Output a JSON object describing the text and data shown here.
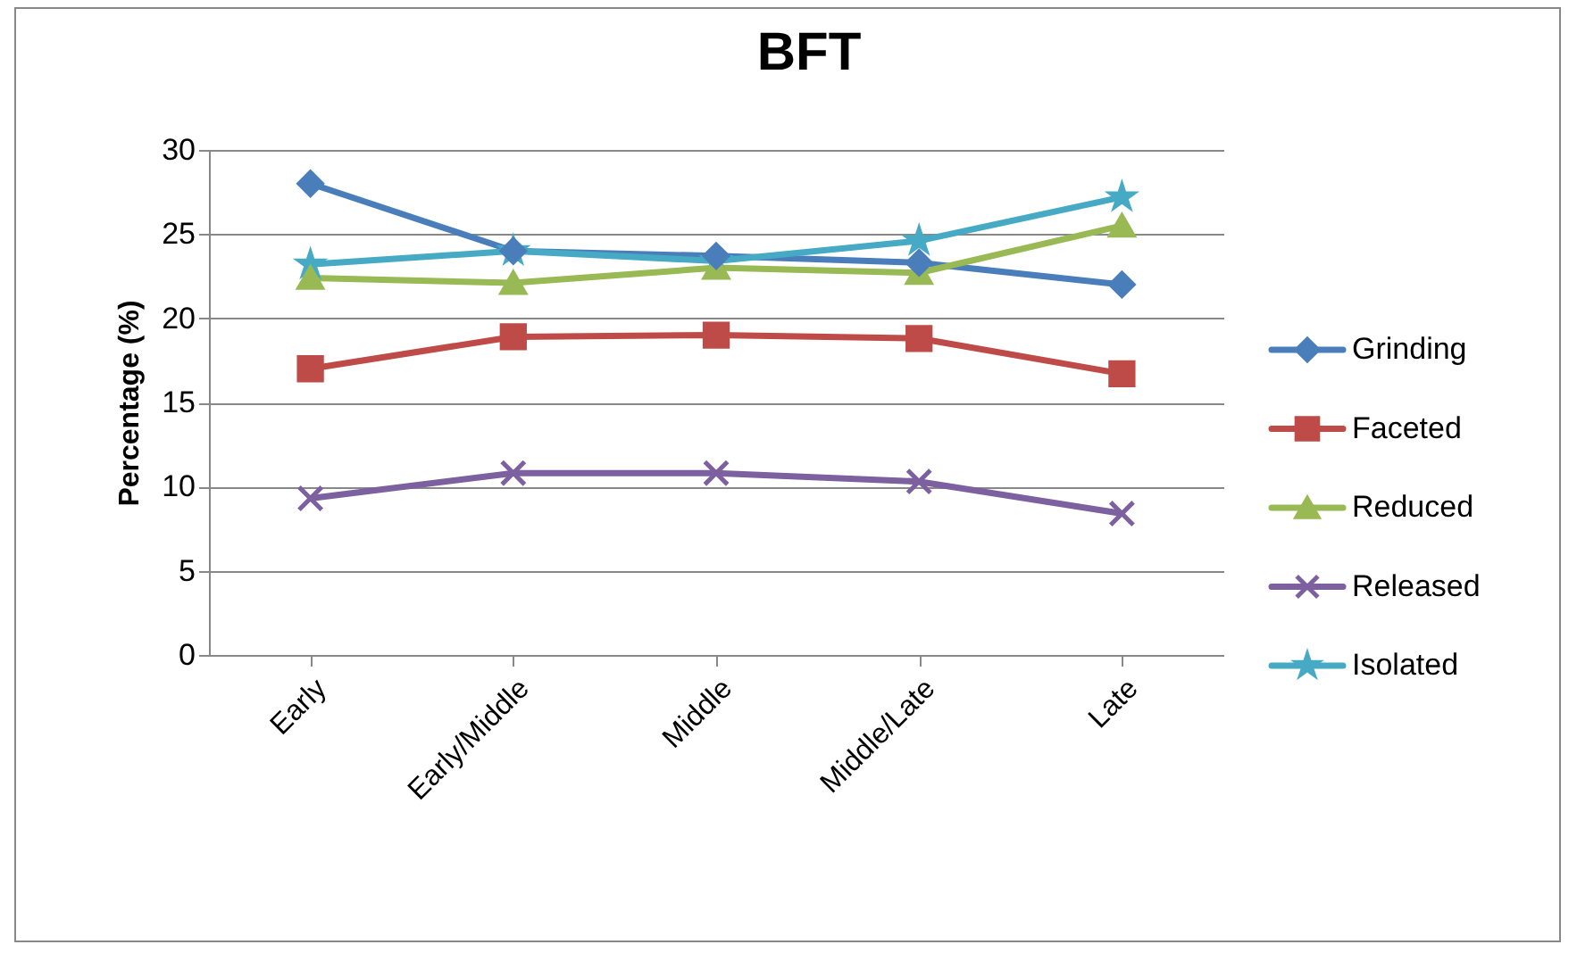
{
  "chart_data": {
    "type": "line",
    "title": "BFT",
    "ylabel": "Percentage (%)",
    "categories": [
      "Early",
      "Early/Middle",
      "Middle",
      "Middle/Late",
      "Late"
    ],
    "ylim": [
      0,
      30
    ],
    "yticks": [
      0,
      5,
      10,
      15,
      20,
      25,
      30
    ],
    "grid": "y",
    "legend": "right",
    "series": [
      {
        "name": "Grinding",
        "color": "#4a7ebb",
        "marker": "diamond",
        "values": [
          28.0,
          24.0,
          23.7,
          23.3,
          22.0
        ]
      },
      {
        "name": "Faceted",
        "color": "#be4b48",
        "marker": "square",
        "values": [
          17.0,
          18.9,
          19.0,
          18.8,
          16.7
        ]
      },
      {
        "name": "Reduced",
        "color": "#98b954",
        "marker": "triangle",
        "values": [
          22.4,
          22.1,
          23.0,
          22.7,
          25.5
        ]
      },
      {
        "name": "Released",
        "color": "#7d60a0",
        "marker": "cross",
        "values": [
          9.3,
          10.8,
          10.8,
          10.3,
          8.4
        ]
      },
      {
        "name": "Isolated",
        "color": "#46aac5",
        "marker": "star",
        "values": [
          23.2,
          24.0,
          23.4,
          24.6,
          27.2
        ]
      }
    ]
  }
}
